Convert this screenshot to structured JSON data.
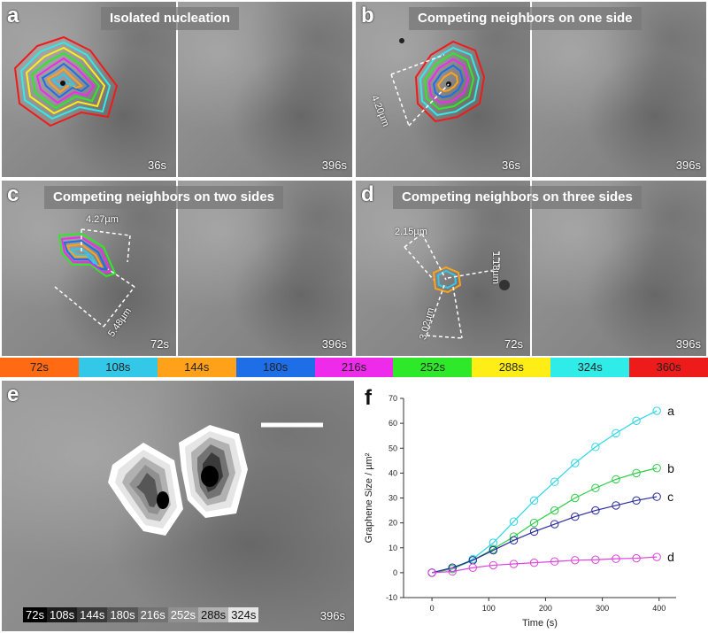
{
  "panels": {
    "a": {
      "label": "a",
      "title": "Isolated nucleation",
      "time_left": "36s",
      "time_right": "396s"
    },
    "b": {
      "label": "b",
      "title": "Competing neighbors on one side",
      "time_left": "36s",
      "time_right": "396s",
      "measure": "4.20µm"
    },
    "c": {
      "label": "c",
      "title": "Competing neighbors on two sides",
      "time_left": "72s",
      "time_right": "396s",
      "measure1": "4.27µm",
      "measure2": "5.48µm"
    },
    "d": {
      "label": "d",
      "title": "Competing neighbors on three sides",
      "time_left": "72s",
      "time_right": "396s",
      "measure1": "2.15µm",
      "measure2": "1.18µm",
      "measure3": "3.02µm"
    },
    "e": {
      "label": "e",
      "time_end": "396s"
    },
    "f": {
      "label": "f"
    }
  },
  "timebar": [
    {
      "label": "72s",
      "color": "#ff6a13"
    },
    {
      "label": "108s",
      "color": "#33c7e8"
    },
    {
      "label": "144s",
      "color": "#ffa21a"
    },
    {
      "label": "180s",
      "color": "#1e6ee8"
    },
    {
      "label": "216s",
      "color": "#ee2bea"
    },
    {
      "label": "252s",
      "color": "#2ee82a"
    },
    {
      "label": "288s",
      "color": "#ffee16"
    },
    {
      "label": "324s",
      "color": "#2fece9"
    },
    {
      "label": "360s",
      "color": "#ee1b1b"
    }
  ],
  "e_timestrip": [
    {
      "label": "72s",
      "bg": "#000000",
      "fg": "#ffffff"
    },
    {
      "label": "108s",
      "bg": "#1d1d1d",
      "fg": "#ffffff"
    },
    {
      "label": "144s",
      "bg": "#3a3a3a",
      "fg": "#ffffff"
    },
    {
      "label": "180s",
      "bg": "#565656",
      "fg": "#ffffff"
    },
    {
      "label": "216s",
      "bg": "#737373",
      "fg": "#ffffff"
    },
    {
      "label": "252s",
      "bg": "#909090",
      "fg": "#ffffff"
    },
    {
      "label": "288s",
      "bg": "#b1b1b1",
      "fg": "#111111"
    },
    {
      "label": "324s",
      "bg": "#e5e5e5",
      "fg": "#111111"
    }
  ],
  "chart_data": {
    "type": "line",
    "xlabel": "Time (s)",
    "ylabel": "Graphene Size / µm²",
    "xlim": [
      -50,
      430
    ],
    "ylim": [
      -10,
      70
    ],
    "xticks": [
      0,
      100,
      200,
      300,
      400
    ],
    "yticks": [
      -10,
      0,
      10,
      20,
      30,
      40,
      50,
      60,
      70
    ],
    "x": [
      0,
      36,
      72,
      108,
      144,
      180,
      216,
      252,
      288,
      324,
      360,
      396
    ],
    "series": [
      {
        "name": "a",
        "color": "#2fd6e6",
        "values": [
          0,
          1.5,
          5.5,
          12,
          20.5,
          29,
          36.5,
          44,
          50.5,
          56,
          61,
          65
        ]
      },
      {
        "name": "b",
        "color": "#2ecc4a",
        "values": [
          0,
          1.5,
          5,
          9.5,
          14.5,
          20,
          25,
          30,
          34,
          37.5,
          40,
          42
        ]
      },
      {
        "name": "c",
        "color": "#2a2aa0",
        "values": [
          0,
          2,
          5,
          9,
          13,
          16.5,
          19.5,
          22.5,
          25,
          27,
          29,
          30.5
        ]
      },
      {
        "name": "d",
        "color": "#dd44dd",
        "values": [
          0,
          0.5,
          2,
          3,
          3.5,
          4,
          4.5,
          5,
          5.2,
          5.6,
          5.8,
          6.3
        ]
      }
    ]
  }
}
